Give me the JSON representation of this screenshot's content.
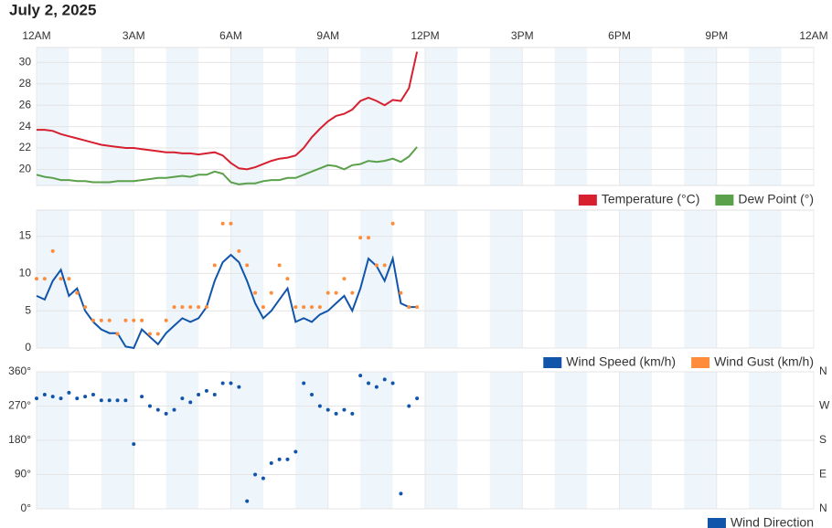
{
  "title": "July 2, 2025",
  "x_axis": {
    "xlim": [
      0,
      24
    ],
    "xticks": [
      {
        "value": 0,
        "label": "12AM"
      },
      {
        "value": 3,
        "label": "3AM"
      },
      {
        "value": 6,
        "label": "6AM"
      },
      {
        "value": 9,
        "label": "9AM"
      },
      {
        "value": 12,
        "label": "12PM"
      },
      {
        "value": 15,
        "label": "3PM"
      },
      {
        "value": 18,
        "label": "6PM"
      },
      {
        "value": 21,
        "label": "9PM"
      },
      {
        "value": 24,
        "label": "12AM"
      }
    ]
  },
  "chart_data": [
    {
      "type": "line",
      "ylim": [
        18.5,
        31.4
      ],
      "yticks": [
        20,
        22,
        24,
        26,
        28,
        30
      ],
      "grid": true,
      "legend": "lower right",
      "x": [
        0,
        0.25,
        0.5,
        0.75,
        1,
        1.25,
        1.5,
        1.75,
        2,
        2.25,
        2.5,
        2.75,
        3,
        3.25,
        3.5,
        3.75,
        4,
        4.25,
        4.5,
        4.75,
        5,
        5.25,
        5.5,
        5.75,
        6,
        6.25,
        6.5,
        6.75,
        7,
        7.25,
        7.5,
        7.75,
        8,
        8.25,
        8.5,
        8.75,
        9,
        9.25,
        9.5,
        9.75,
        10,
        10.25,
        10.5,
        10.75,
        11,
        11.25,
        11.5,
        11.75
      ],
      "series": [
        {
          "name": "Temperature (°C)",
          "color": "#d62030",
          "style": "line",
          "values": [
            23.7,
            23.7,
            23.6,
            23.3,
            23.1,
            22.9,
            22.7,
            22.5,
            22.3,
            22.2,
            22.1,
            22.0,
            22.0,
            21.9,
            21.8,
            21.7,
            21.6,
            21.6,
            21.5,
            21.5,
            21.4,
            21.5,
            21.6,
            21.3,
            20.6,
            20.1,
            20.0,
            20.2,
            20.5,
            20.8,
            21.0,
            21.1,
            21.3,
            22.0,
            23.0,
            23.8,
            24.5,
            25.0,
            25.2,
            25.6,
            26.4,
            26.7,
            26.4,
            26.0,
            26.5,
            26.4,
            27.6,
            31.0
          ]
        },
        {
          "name": "Dew Point (°)",
          "color": "#5ba04a",
          "style": "line",
          "values": [
            19.5,
            19.3,
            19.2,
            19.0,
            19.0,
            18.9,
            18.9,
            18.8,
            18.8,
            18.8,
            18.9,
            18.9,
            18.9,
            19.0,
            19.1,
            19.2,
            19.2,
            19.3,
            19.4,
            19.3,
            19.5,
            19.5,
            19.8,
            19.6,
            18.8,
            18.6,
            18.7,
            18.7,
            18.9,
            19.0,
            19.0,
            19.2,
            19.2,
            19.5,
            19.8,
            20.1,
            20.4,
            20.3,
            20.0,
            20.4,
            20.5,
            20.8,
            20.7,
            20.8,
            21.0,
            20.7,
            21.2,
            22.1
          ]
        }
      ]
    },
    {
      "type": "line",
      "ylim": [
        0,
        18.5
      ],
      "yticks": [
        0,
        5,
        10,
        15
      ],
      "grid": true,
      "legend": "lower right",
      "x": [
        0,
        0.25,
        0.5,
        0.75,
        1,
        1.25,
        1.5,
        1.75,
        2,
        2.25,
        2.5,
        2.75,
        3,
        3.25,
        3.5,
        3.75,
        4,
        4.25,
        4.5,
        4.75,
        5,
        5.25,
        5.5,
        5.75,
        6,
        6.25,
        6.5,
        6.75,
        7,
        7.25,
        7.5,
        7.75,
        8,
        8.25,
        8.5,
        8.75,
        9,
        9.25,
        9.5,
        9.75,
        10,
        10.25,
        10.5,
        10.75,
        11,
        11.25,
        11.5,
        11.75
      ],
      "series": [
        {
          "name": "Wind Speed (km/h)",
          "color": "#1155aa",
          "style": "line",
          "values": [
            7,
            6.5,
            9,
            10.5,
            7,
            8,
            5,
            3.5,
            2.5,
            2,
            2,
            0.2,
            0,
            2.5,
            1.5,
            0.5,
            2,
            3,
            4,
            3.5,
            4,
            5.5,
            9,
            11.5,
            12.5,
            11.5,
            9,
            6,
            4,
            5,
            6.5,
            8,
            3.5,
            4,
            3.5,
            4.5,
            5,
            6,
            7,
            5,
            8,
            12,
            11,
            9,
            12,
            6,
            5.5,
            5.5
          ]
        },
        {
          "name": "Wind Gust (km/h)",
          "color": "#ff8c3a",
          "style": "markers",
          "values": [
            9.3,
            9.3,
            13,
            9.3,
            9.3,
            7.4,
            5.5,
            3.7,
            3.7,
            3.7,
            1.9,
            3.7,
            3.7,
            3.7,
            1.9,
            1.9,
            3.7,
            5.5,
            5.5,
            5.5,
            5.5,
            5.5,
            11.1,
            16.7,
            16.7,
            13,
            11.1,
            7.4,
            5.5,
            7.4,
            11.1,
            9.3,
            5.5,
            5.5,
            5.5,
            5.5,
            7.4,
            7.4,
            9.3,
            7.4,
            14.8,
            14.8,
            11.1,
            11.1,
            16.7,
            7.4,
            5.5,
            5.5
          ]
        }
      ]
    },
    {
      "type": "scatter",
      "ylim": [
        0,
        360
      ],
      "yticks": [
        {
          "value": 0,
          "label": "0°"
        },
        {
          "value": 90,
          "label": "90°"
        },
        {
          "value": 180,
          "label": "180°"
        },
        {
          "value": 270,
          "label": "270°"
        },
        {
          "value": 360,
          "label": "360°"
        }
      ],
      "y2lim": [
        0,
        360
      ],
      "y2ticks": [
        {
          "value": 0,
          "label": "N"
        },
        {
          "value": 90,
          "label": "E"
        },
        {
          "value": 180,
          "label": "S"
        },
        {
          "value": 270,
          "label": "W"
        },
        {
          "value": 360,
          "label": "N"
        }
      ],
      "grid": true,
      "legend": "lower right",
      "x": [
        0,
        0.25,
        0.5,
        0.75,
        1,
        1.25,
        1.5,
        1.75,
        2,
        2.25,
        2.5,
        2.75,
        3,
        3.25,
        3.5,
        3.75,
        4,
        4.25,
        4.5,
        4.75,
        5,
        5.25,
        5.5,
        5.75,
        6,
        6.25,
        6.5,
        6.75,
        7,
        7.25,
        7.5,
        7.75,
        8,
        8.25,
        8.5,
        8.75,
        9,
        9.25,
        9.5,
        9.75,
        10,
        10.25,
        10.5,
        10.75,
        11,
        11.25,
        11.5,
        11.75
      ],
      "series": [
        {
          "name": "Wind Direction",
          "color": "#1155aa",
          "style": "markers",
          "values": [
            290,
            300,
            295,
            290,
            305,
            290,
            295,
            300,
            285,
            285,
            285,
            285,
            170,
            295,
            270,
            260,
            250,
            260,
            290,
            280,
            300,
            310,
            300,
            330,
            330,
            320,
            20,
            90,
            80,
            120,
            130,
            130,
            150,
            330,
            300,
            270,
            260,
            250,
            260,
            250,
            350,
            330,
            320,
            340,
            330,
            40,
            270,
            290
          ]
        }
      ]
    }
  ]
}
